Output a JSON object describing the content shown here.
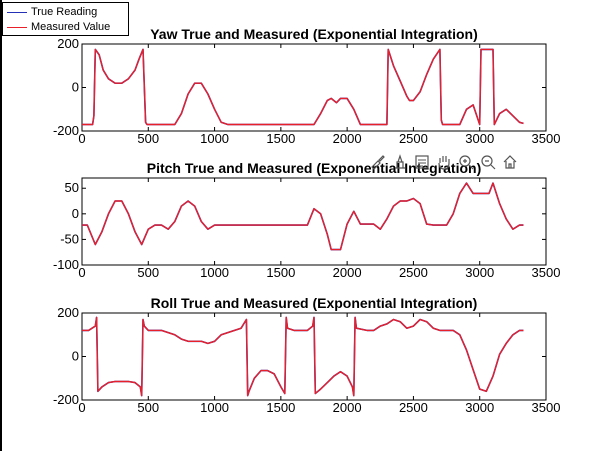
{
  "legend": {
    "items": [
      {
        "label": "True Reading",
        "color": "#2430b5"
      },
      {
        "label": "Measured Value",
        "color": "#e8202a"
      }
    ]
  },
  "toolbar": {
    "icons": [
      "brush-icon",
      "data-tips-icon",
      "edit-icon",
      "pan-hand-icon",
      "zoom-in-icon",
      "zoom-out-icon",
      "home-icon"
    ]
  },
  "chart_data": [
    {
      "type": "line",
      "title": "Yaw True and Measured (Exponential Integration)",
      "xlim": [
        0,
        3500
      ],
      "ylim": [
        -200,
        200
      ],
      "xticks": [
        0,
        500,
        1000,
        1500,
        2000,
        2500,
        3000,
        3500
      ],
      "yticks": [
        -200,
        0,
        200
      ],
      "xlabel": "",
      "ylabel": "",
      "series": [
        {
          "name": "True Reading",
          "color": "#2430b5",
          "x": [
            0,
            80,
            90,
            100,
            130,
            160,
            200,
            250,
            300,
            350,
            400,
            430,
            460,
            480,
            490,
            500,
            700,
            750,
            800,
            850,
            900,
            950,
            1000,
            1050,
            1100,
            1500,
            1750,
            1800,
            1850,
            1880,
            1920,
            1950,
            2000,
            2050,
            2100,
            2300,
            2310,
            2350,
            2400,
            2450,
            2470,
            2500,
            2550,
            2600,
            2650,
            2700,
            2710,
            2720,
            2800,
            2850,
            2900,
            2950,
            3000,
            3010,
            3100,
            3110,
            3150,
            3200,
            3250,
            3300,
            3330
          ],
          "y": [
            -170,
            -170,
            -130,
            175,
            150,
            80,
            40,
            20,
            20,
            40,
            80,
            130,
            175,
            -160,
            -170,
            -170,
            -170,
            -120,
            -30,
            20,
            20,
            -30,
            -100,
            -160,
            -170,
            -170,
            -170,
            -120,
            -60,
            -50,
            -70,
            -50,
            -50,
            -100,
            -170,
            -170,
            175,
            100,
            30,
            -40,
            -60,
            -60,
            -20,
            60,
            130,
            175,
            -150,
            -170,
            -170,
            -170,
            -100,
            -80,
            -170,
            175,
            175,
            -170,
            -120,
            -100,
            -130,
            -160,
            -165
          ]
        }
      ]
    },
    {
      "type": "line",
      "title": "Pitch True and Measured (Exponential Integration)",
      "xlim": [
        0,
        3500
      ],
      "ylim": [
        -100,
        70
      ],
      "xticks": [
        0,
        500,
        1000,
        1500,
        2000,
        2500,
        3000,
        3500
      ],
      "yticks": [
        -100,
        -50,
        0,
        50
      ],
      "xlabel": "",
      "ylabel": "",
      "series": [
        {
          "name": "True Reading",
          "color": "#2430b5",
          "x": [
            0,
            40,
            100,
            150,
            200,
            250,
            300,
            350,
            400,
            450,
            500,
            550,
            600,
            650,
            700,
            750,
            800,
            850,
            900,
            950,
            1000,
            1050,
            1500,
            1700,
            1750,
            1800,
            1850,
            1880,
            1920,
            1950,
            2000,
            2050,
            2100,
            2150,
            2200,
            2250,
            2300,
            2350,
            2400,
            2450,
            2500,
            2550,
            2600,
            2650,
            2700,
            2750,
            2800,
            2850,
            2900,
            2950,
            3000,
            3030,
            3070,
            3100,
            3150,
            3200,
            3250,
            3300,
            3330
          ],
          "y": [
            -22,
            -22,
            -60,
            -35,
            0,
            25,
            25,
            0,
            -35,
            -60,
            -30,
            -22,
            -22,
            -30,
            -15,
            15,
            25,
            15,
            -15,
            -30,
            -22,
            -22,
            -22,
            -22,
            10,
            0,
            -40,
            -70,
            -70,
            -70,
            -20,
            5,
            -20,
            -20,
            -20,
            -30,
            -10,
            15,
            25,
            25,
            30,
            20,
            -20,
            -22,
            -22,
            -22,
            0,
            40,
            60,
            40,
            40,
            40,
            40,
            60,
            20,
            -10,
            -30,
            -22,
            -22
          ]
        }
      ]
    },
    {
      "type": "line",
      "title": "Roll True and Measured (Exponential Integration)",
      "xlim": [
        0,
        3500
      ],
      "ylim": [
        -200,
        200
      ],
      "xticks": [
        0,
        500,
        1000,
        1500,
        2000,
        2500,
        3000,
        3500
      ],
      "yticks": [
        -200,
        0,
        200
      ],
      "xlabel": "",
      "ylabel": "",
      "series": [
        {
          "name": "True Reading",
          "color": "#2430b5",
          "x": [
            0,
            50,
            100,
            110,
            120,
            150,
            200,
            250,
            300,
            350,
            400,
            440,
            450,
            460,
            470,
            500,
            550,
            600,
            700,
            750,
            800,
            850,
            900,
            950,
            1000,
            1050,
            1150,
            1200,
            1240,
            1250,
            1260,
            1300,
            1350,
            1400,
            1450,
            1500,
            1530,
            1540,
            1550,
            1600,
            1700,
            1740,
            1750,
            1760,
            1800,
            1850,
            1900,
            1950,
            2000,
            2040,
            2050,
            2060,
            2070,
            2150,
            2200,
            2250,
            2300,
            2350,
            2400,
            2450,
            2500,
            2550,
            2600,
            2650,
            2700,
            2750,
            2800,
            2850,
            2900,
            2950,
            3000,
            3050,
            3100,
            3150,
            3200,
            3250,
            3300,
            3330
          ],
          "y": [
            120,
            120,
            140,
            180,
            -160,
            -140,
            -120,
            -115,
            -115,
            -115,
            -120,
            -140,
            -180,
            170,
            140,
            120,
            120,
            120,
            100,
            80,
            70,
            70,
            70,
            60,
            70,
            100,
            120,
            130,
            170,
            -180,
            -160,
            -100,
            -65,
            -65,
            -80,
            -140,
            -170,
            180,
            130,
            120,
            120,
            140,
            180,
            -170,
            -150,
            -120,
            -90,
            -70,
            -90,
            -140,
            -180,
            180,
            130,
            120,
            120,
            140,
            150,
            170,
            160,
            130,
            140,
            170,
            160,
            130,
            120,
            120,
            120,
            100,
            30,
            -60,
            -150,
            -160,
            -90,
            10,
            60,
            100,
            120,
            120
          ]
        }
      ]
    }
  ]
}
